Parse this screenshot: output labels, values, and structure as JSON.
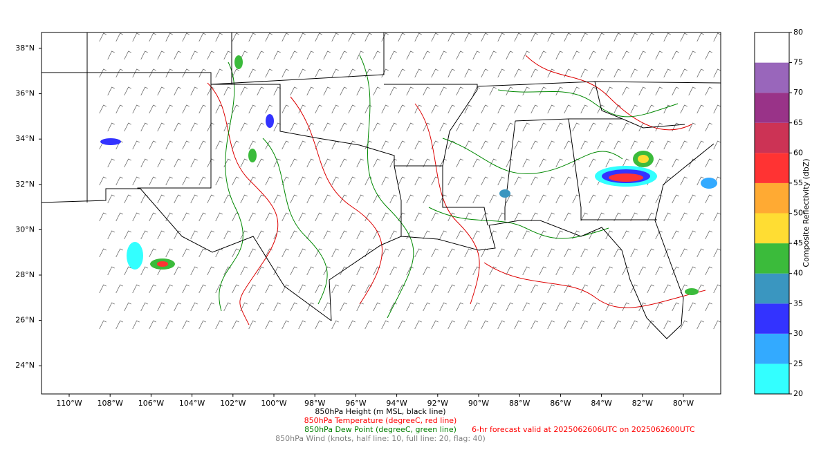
{
  "map": {
    "lat_ticks": [
      {
        "value": 38,
        "label": "38°N"
      },
      {
        "value": 36,
        "label": "36°N"
      },
      {
        "value": 34,
        "label": "34°N"
      },
      {
        "value": 32,
        "label": "32°N"
      },
      {
        "value": 30,
        "label": "30°N"
      },
      {
        "value": 28,
        "label": "28°N"
      },
      {
        "value": 26,
        "label": "26°N"
      },
      {
        "value": 24,
        "label": "24°N"
      }
    ],
    "lon_ticks": [
      {
        "value": -110,
        "label": "110°W"
      },
      {
        "value": -108,
        "label": "108°W"
      },
      {
        "value": -106,
        "label": "106°W"
      },
      {
        "value": -104,
        "label": "104°W"
      },
      {
        "value": -102,
        "label": "102°W"
      },
      {
        "value": -100,
        "label": "100°W"
      },
      {
        "value": -98,
        "label": "98°W"
      },
      {
        "value": -96,
        "label": "96°W"
      },
      {
        "value": -94,
        "label": "94°W"
      },
      {
        "value": -92,
        "label": "92°W"
      },
      {
        "value": -90,
        "label": "90°W"
      },
      {
        "value": -88,
        "label": "88°W"
      },
      {
        "value": -86,
        "label": "86°W"
      },
      {
        "value": -84,
        "label": "84°W"
      },
      {
        "value": -82,
        "label": "82°W"
      },
      {
        "value": -80,
        "label": "80°W"
      }
    ],
    "colorbar": {
      "label": "Composite Reflectivity (dbZ)",
      "ticks": [
        20,
        25,
        30,
        35,
        40,
        45,
        50,
        55,
        60,
        65,
        70,
        75,
        80
      ],
      "colors": [
        "#33ffff",
        "#33aaff",
        "#3333ff",
        "#3a96c0",
        "#3bbb3b",
        "#ffdd33",
        "#ffaa33",
        "#ff3333",
        "#cc3355",
        "#993388",
        "#9966bb",
        "#ffffff"
      ]
    },
    "captions": [
      {
        "text": "850hPa Height (m MSL, black line)",
        "color": "#000000"
      },
      {
        "text": "850hPa Temperature (degreeC, red line)",
        "color": "#ff0000"
      },
      {
        "text": "850hPa Dew Point (degreeC, green line)",
        "color": "#008000"
      },
      {
        "text": "850hPa Wind (knots, half line: 10, full line: 20, flag: 40)",
        "color": "#808080"
      }
    ],
    "forecast": {
      "text": "6-hr forecast valid at 2025062606UTC on 2025062600UTC",
      "color": "#ff0000"
    }
  }
}
